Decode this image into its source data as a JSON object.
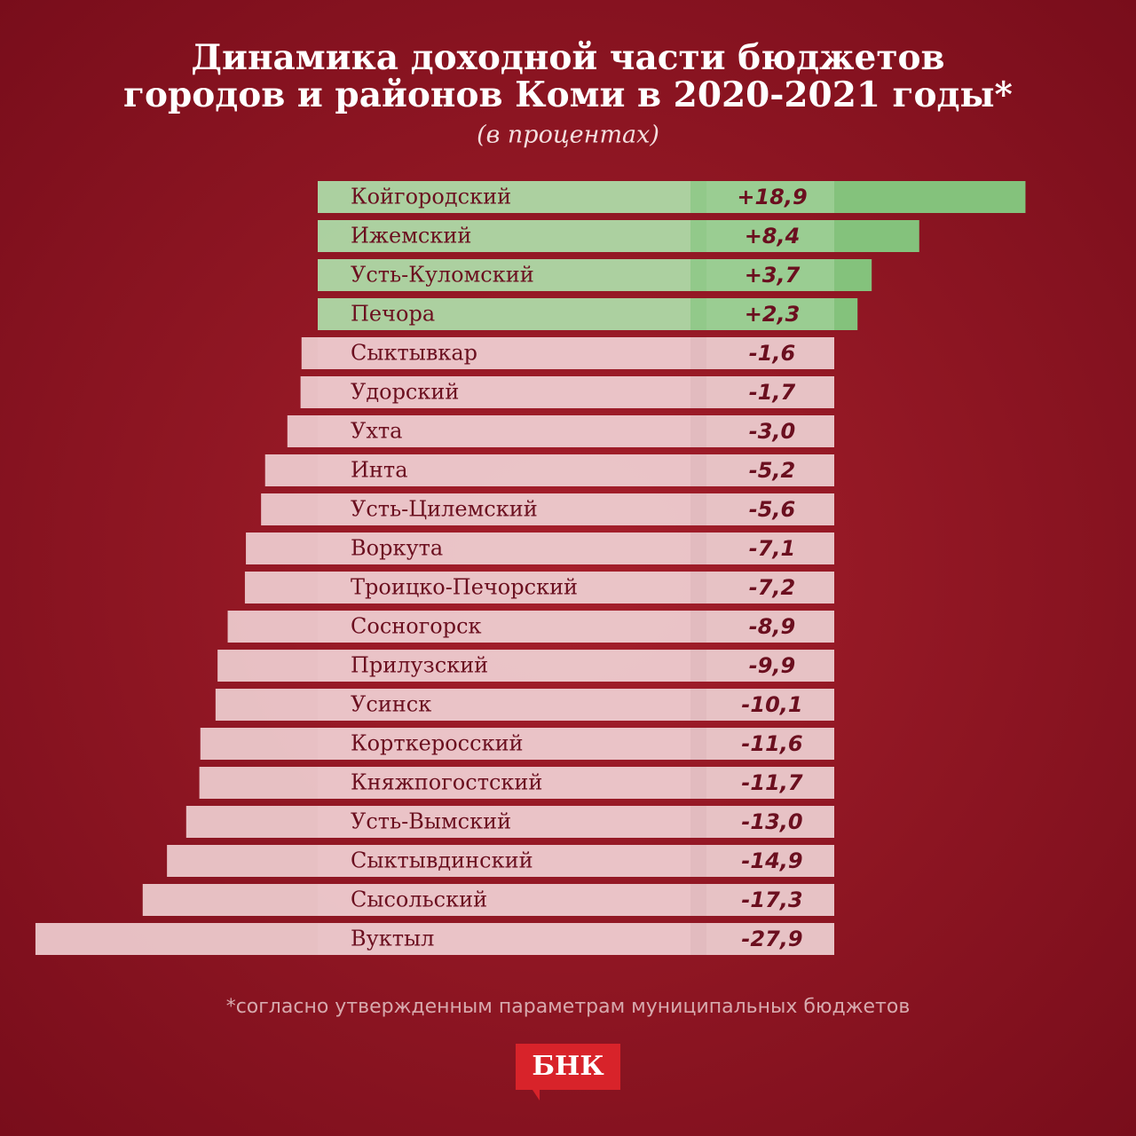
{
  "chart_data": {
    "type": "bar",
    "title": [
      "Динамика доходной части бюджетов",
      "городов и районов Коми в 2020-2021 годы*"
    ],
    "subtitle": "(в процентах)",
    "categories": [
      "Койгородский",
      "Ижемский",
      "Усть-Куломский",
      "Печора",
      "Сыктывкар",
      "Удорский",
      "Ухта",
      "Инта",
      "Усть-Цилемский",
      "Воркута",
      "Троицко-Печорский",
      "Сосногорск",
      "Прилузский",
      "Усинск",
      "Корткеросский",
      "Княжпогостский",
      "Усть-Вымский",
      "Сыктывдинский",
      "Сысольский",
      "Вуктыл"
    ],
    "values": [
      18.9,
      8.4,
      3.7,
      2.3,
      -1.6,
      -1.7,
      -3.0,
      -5.2,
      -5.6,
      -7.1,
      -7.2,
      -8.9,
      -9.9,
      -10.1,
      -11.6,
      -11.7,
      -13.0,
      -14.9,
      -17.3,
      -27.9
    ],
    "value_labels": [
      "+18,9",
      "+8,4",
      "+3,7",
      "+2,3",
      "-1,6",
      "-1,7",
      "-3,0",
      "-5,2",
      "-5,6",
      "-7,1",
      "-7,2",
      "-8,9",
      "-9,9",
      "-10,1",
      "-11,6",
      "-11,7",
      "-13,0",
      "-14,9",
      "-17,3",
      "-27,9"
    ],
    "colors": {
      "positive": "#84c27c",
      "negative": "#ecc9cc"
    },
    "footnote": "*согласно утвержденным параметрам муниципальных бюджетов",
    "logo": "БНК"
  }
}
